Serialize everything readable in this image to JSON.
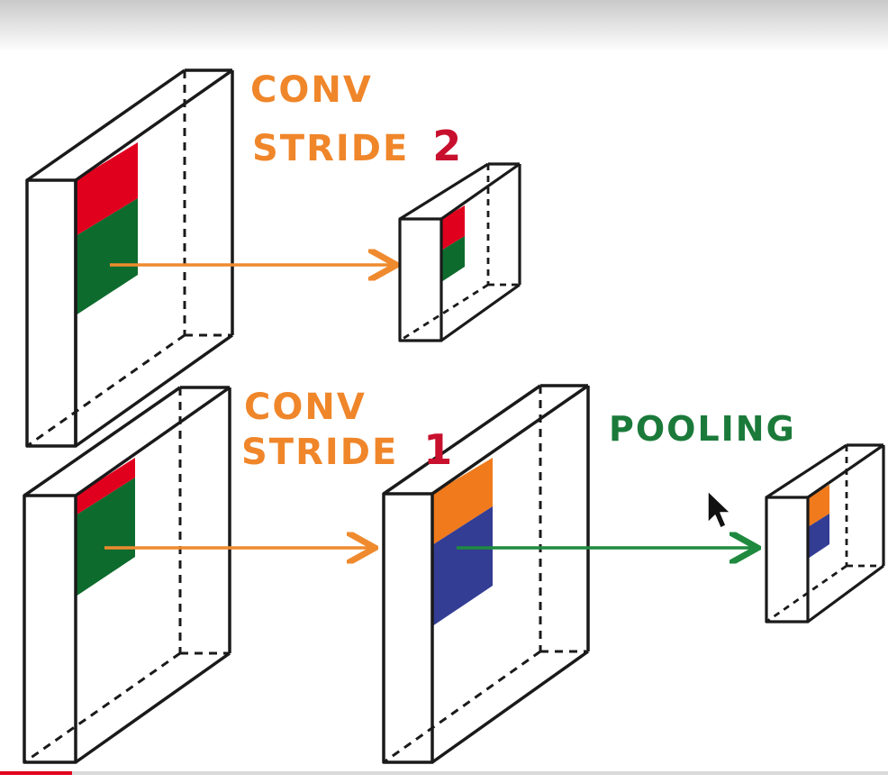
{
  "labels": {
    "conv_top_line1": "CONV",
    "conv_top_line2_word": "STRIDE",
    "conv_top_line2_num": "2",
    "conv_bottom_line1": "CONV",
    "conv_bottom_line2_word": "STRIDE",
    "conv_bottom_line2_num": "1",
    "pooling": "POOLING"
  },
  "colors": {
    "outline": "#1a1a1a",
    "label_orange": "#f0862a",
    "label_red": "#c8102e",
    "label_green": "#1b7a3a",
    "patch_red": "#e0001e",
    "patch_green": "#0e6b2e",
    "patch_orange": "#f07a1c",
    "patch_blue": "#333d94",
    "arrow_orange": "#ef8a2e",
    "arrow_green": "#1f8a3f"
  },
  "icons": {
    "cursor": "mouse-pointer-icon"
  }
}
